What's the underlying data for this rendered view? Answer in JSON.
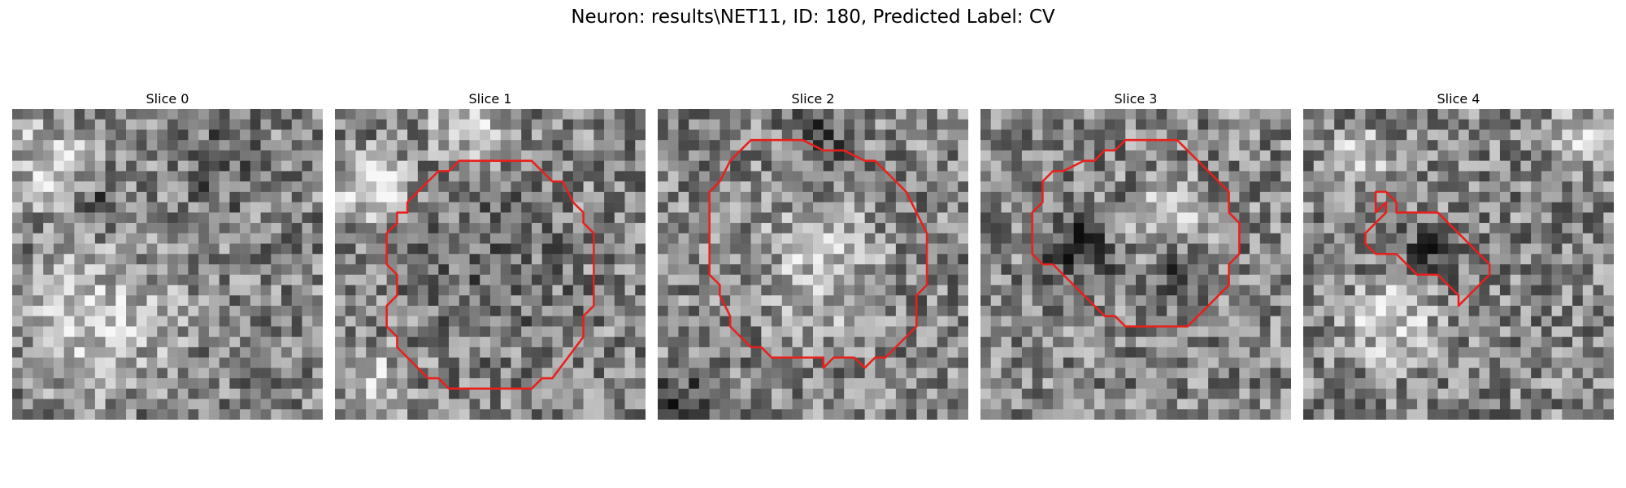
{
  "figure": {
    "title": "Neuron: results\\NET11, ID: 180, Predicted Label: CV"
  },
  "grid_size": 30,
  "contour_color": "#e8201c",
  "panels": [
    {
      "title": "Slice 0",
      "seed": 11,
      "bright_zones": [
        [
          3,
          5,
          6,
          0.35
        ],
        [
          8,
          20,
          10,
          0.3
        ]
      ],
      "dark_zones": [
        [
          7,
          9,
          2,
          0.5
        ],
        [
          20,
          5,
          6,
          0.2
        ]
      ],
      "contour": []
    },
    {
      "title": "Slice 1",
      "seed": 23,
      "bright_zones": [
        [
          3,
          7,
          5,
          0.45
        ],
        [
          12,
          1,
          5,
          0.35
        ],
        [
          3,
          26,
          5,
          0.3
        ]
      ],
      "dark_zones": [
        [
          15,
          15,
          11,
          0.12
        ]
      ],
      "contour": [
        [
          12,
          5
        ],
        [
          14,
          5
        ],
        [
          19,
          5
        ],
        [
          21,
          7
        ],
        [
          22,
          7
        ],
        [
          23,
          9
        ],
        [
          24,
          10
        ],
        [
          24,
          11
        ],
        [
          25,
          12
        ],
        [
          25,
          19
        ],
        [
          24,
          20
        ],
        [
          24,
          22
        ],
        [
          21,
          26
        ],
        [
          20,
          26
        ],
        [
          19,
          27
        ],
        [
          11,
          27
        ],
        [
          10,
          26
        ],
        [
          9,
          26
        ],
        [
          6,
          23
        ],
        [
          6,
          22
        ],
        [
          5,
          21
        ],
        [
          5,
          19
        ],
        [
          6,
          18
        ],
        [
          6,
          16
        ],
        [
          5,
          15
        ],
        [
          5,
          12
        ],
        [
          6,
          11
        ],
        [
          6,
          10
        ],
        [
          7,
          10
        ],
        [
          7,
          9
        ],
        [
          8,
          8
        ],
        [
          10,
          6
        ],
        [
          11,
          6
        ]
      ]
    },
    {
      "title": "Slice 2",
      "seed": 37,
      "bright_zones": [
        [
          15,
          15,
          9,
          0.25
        ]
      ],
      "dark_zones": [
        [
          15,
          2,
          4,
          0.3
        ],
        [
          2,
          28,
          4,
          0.3
        ]
      ],
      "contour": [
        [
          9,
          3
        ],
        [
          10,
          3
        ],
        [
          14,
          3
        ],
        [
          16,
          4
        ],
        [
          18,
          4
        ],
        [
          20,
          5
        ],
        [
          21,
          5
        ],
        [
          22,
          6
        ],
        [
          23,
          7
        ],
        [
          24,
          8
        ],
        [
          25,
          10
        ],
        [
          26,
          12
        ],
        [
          26,
          17
        ],
        [
          25,
          18
        ],
        [
          25,
          21
        ],
        [
          24,
          22
        ],
        [
          23,
          23
        ],
        [
          22,
          24
        ],
        [
          21,
          24
        ],
        [
          20,
          25
        ],
        [
          19,
          24
        ],
        [
          17,
          24
        ],
        [
          16,
          25
        ],
        [
          16,
          24
        ],
        [
          15,
          24
        ],
        [
          11,
          24
        ],
        [
          10,
          23
        ],
        [
          9,
          23
        ],
        [
          8,
          22
        ],
        [
          7,
          21
        ],
        [
          7,
          20
        ],
        [
          6,
          18
        ],
        [
          6,
          17
        ],
        [
          5,
          16
        ],
        [
          5,
          13
        ],
        [
          5,
          10
        ],
        [
          5,
          8
        ],
        [
          6,
          7
        ],
        [
          7,
          5
        ],
        [
          8,
          4
        ]
      ]
    },
    {
      "title": "Slice 3",
      "seed": 51,
      "bright_zones": [
        [
          18,
          10,
          5,
          0.3
        ]
      ],
      "dark_zones": [
        [
          9,
          13,
          5,
          0.35
        ],
        [
          19,
          15,
          4,
          0.3
        ]
      ],
      "contour": [
        [
          14,
          3
        ],
        [
          15,
          3
        ],
        [
          19,
          3
        ],
        [
          20,
          4
        ],
        [
          22,
          6
        ],
        [
          23,
          7
        ],
        [
          24,
          8
        ],
        [
          24,
          10
        ],
        [
          25,
          11
        ],
        [
          25,
          14
        ],
        [
          24,
          15
        ],
        [
          24,
          17
        ],
        [
          23,
          18
        ],
        [
          22,
          19
        ],
        [
          21,
          20
        ],
        [
          20,
          21
        ],
        [
          14,
          21
        ],
        [
          13,
          20
        ],
        [
          12,
          20
        ],
        [
          10,
          18
        ],
        [
          9,
          17
        ],
        [
          8,
          16
        ],
        [
          7,
          15
        ],
        [
          6,
          15
        ],
        [
          5,
          14
        ],
        [
          5,
          13
        ],
        [
          5,
          10
        ],
        [
          6,
          9
        ],
        [
          6,
          8
        ],
        [
          6,
          7
        ],
        [
          7,
          6
        ],
        [
          8,
          6
        ],
        [
          10,
          5
        ],
        [
          11,
          5
        ],
        [
          12,
          4
        ],
        [
          13,
          4
        ]
      ]
    },
    {
      "title": "Slice 4",
      "seed": 67,
      "bright_zones": [
        [
          8,
          20,
          6,
          0.35
        ],
        [
          26,
          2,
          4,
          0.35
        ],
        [
          5,
          4,
          4,
          0.3
        ]
      ],
      "dark_zones": [
        [
          12,
          13,
          4,
          0.3
        ]
      ],
      "contour": [
        [
          7,
          8
        ],
        [
          8,
          8
        ],
        [
          9,
          9
        ],
        [
          9,
          10
        ],
        [
          10,
          10
        ],
        [
          12,
          10
        ],
        [
          13,
          10
        ],
        [
          14,
          11
        ],
        [
          15,
          12
        ],
        [
          17,
          14
        ],
        [
          18,
          15
        ],
        [
          18,
          16
        ],
        [
          16,
          18
        ],
        [
          15,
          19
        ],
        [
          15,
          18
        ],
        [
          14,
          17
        ],
        [
          13,
          16
        ],
        [
          12,
          16
        ],
        [
          11,
          16
        ],
        [
          10,
          15
        ],
        [
          9,
          14
        ],
        [
          8,
          14
        ],
        [
          7,
          14
        ],
        [
          6,
          13
        ],
        [
          6,
          12
        ],
        [
          7,
          11
        ],
        [
          8,
          10
        ],
        [
          8,
          9
        ],
        [
          7,
          10
        ],
        [
          7,
          9
        ],
        [
          7,
          8
        ]
      ]
    }
  ]
}
